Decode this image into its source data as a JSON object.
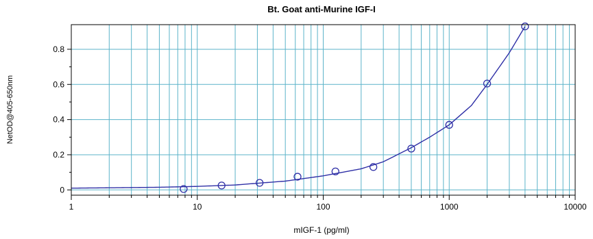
{
  "chart_data": {
    "type": "scatter",
    "title": "Bt. Goat anti-Murine IGF-I",
    "xlabel": "mIGF-1 (pg/ml)",
    "ylabel": "NetOD@405-650nm",
    "xscale": "log",
    "xlim": [
      1,
      10000
    ],
    "ylim": [
      -0.03,
      0.94
    ],
    "x_ticks": [
      1,
      10,
      100,
      1000,
      10000
    ],
    "x_tick_labels": [
      "1",
      "10",
      "100",
      "1000",
      "10000"
    ],
    "y_ticks": [
      0,
      0.2,
      0.4,
      0.6,
      0.8
    ],
    "y_tick_labels": [
      "0",
      "0.2",
      "0.4",
      "0.6",
      "0.8"
    ],
    "grid": true,
    "legend": "none",
    "series": [
      {
        "x": [
          7.8,
          15.6,
          31.25,
          62.5,
          125,
          250,
          500,
          1000,
          2000,
          4000
        ],
        "y": [
          0.005,
          0.025,
          0.04,
          0.075,
          0.105,
          0.13,
          0.235,
          0.37,
          0.605,
          0.93
        ]
      }
    ],
    "fit_curve": {
      "x": [
        1,
        2,
        5,
        10,
        20,
        50,
        100,
        200,
        300,
        500,
        700,
        1000,
        1500,
        2000,
        3000,
        4000
      ],
      "y": [
        0.01,
        0.012,
        0.015,
        0.02,
        0.028,
        0.05,
        0.08,
        0.12,
        0.16,
        0.24,
        0.3,
        0.37,
        0.48,
        0.6,
        0.78,
        0.93
      ]
    },
    "colors": {
      "grid": "#5bb3c9",
      "curve": "#2e2fa6",
      "marker": "#2e2fa6",
      "axis": "#000000",
      "text": "#000000"
    }
  }
}
